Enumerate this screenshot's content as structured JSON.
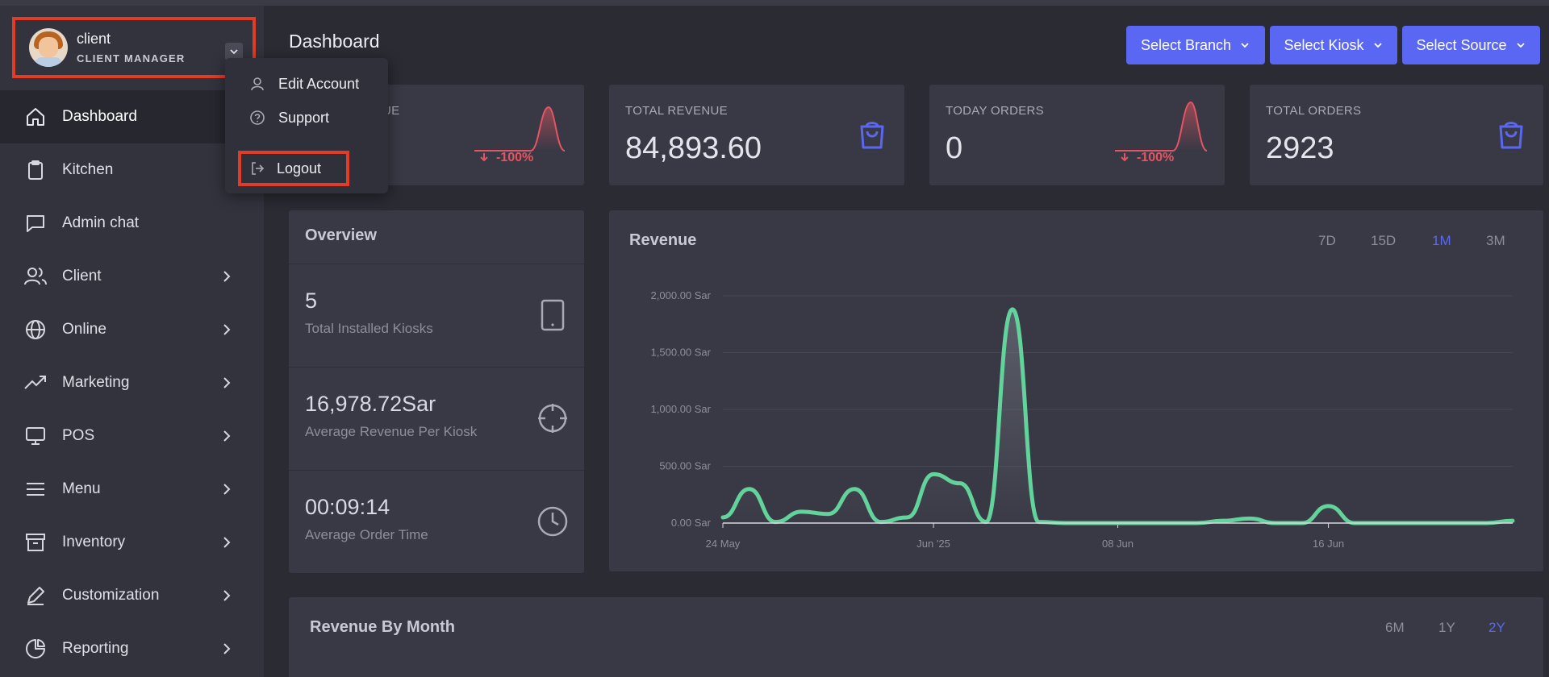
{
  "profile": {
    "name": "client",
    "role": "CLIENT MANAGER"
  },
  "dropdown": {
    "items": [
      {
        "label": "Edit Account",
        "icon": "user-icon"
      },
      {
        "label": "Support",
        "icon": "help-circle-icon"
      }
    ],
    "logout_label": "Logout"
  },
  "sidebar": {
    "items": [
      {
        "label": "Dashboard",
        "icon": "home-icon"
      },
      {
        "label": "Kitchen",
        "icon": "clipboard-icon"
      },
      {
        "label": "Admin chat",
        "icon": "chat-icon"
      },
      {
        "label": "Client",
        "icon": "users-icon"
      },
      {
        "label": "Online",
        "icon": "globe-icon"
      },
      {
        "label": "Marketing",
        "icon": "trending-up-icon"
      },
      {
        "label": "POS",
        "icon": "monitor-icon"
      },
      {
        "label": "Menu",
        "icon": "menu-icon"
      },
      {
        "label": "Inventory",
        "icon": "archive-icon"
      },
      {
        "label": "Customization",
        "icon": "pen-icon"
      },
      {
        "label": "Reporting",
        "icon": "pie-chart-icon"
      }
    ]
  },
  "header": {
    "title": "Dashboard",
    "select_branch": "Select Branch",
    "select_kiosk": "Select Kiosk",
    "select_source": "Select Source"
  },
  "stats": {
    "today_revenue": {
      "label": "UE",
      "pct": "-100%"
    },
    "total_revenue": {
      "label": "TOTAL REVENUE",
      "value": "84,893.60"
    },
    "today_orders": {
      "label": "TODAY ORDERS",
      "value": "0",
      "pct": "-100%"
    },
    "total_orders": {
      "label": "TOTAL ORDERS",
      "value": "2923"
    }
  },
  "overview": {
    "title": "Overview",
    "rows": [
      {
        "value": "5",
        "label": "Total Installed Kiosks",
        "icon": "tablet-icon"
      },
      {
        "value": "16,978.72Sar",
        "label": "Average Revenue Per Kiosk",
        "icon": "crosshair-icon"
      },
      {
        "value": "00:09:14",
        "label": "Average Order Time",
        "icon": "clock-icon"
      }
    ]
  },
  "revenue": {
    "title": "Revenue",
    "ranges": [
      "7D",
      "15D",
      "1M",
      "3M"
    ],
    "active_range": "1M"
  },
  "revenue_by_month": {
    "title": "Revenue By Month",
    "ranges": [
      "6M",
      "1Y",
      "2Y"
    ],
    "active_range": "2Y"
  },
  "colors": {
    "accent": "#5a67f2",
    "line": "#62d39a",
    "negative": "#e45563",
    "highlight": "#e03c28"
  },
  "chart_data": {
    "type": "area",
    "title": "Revenue",
    "x": [
      "2025-05-24",
      "2025-05-25",
      "2025-05-26",
      "2025-05-27",
      "2025-05-28",
      "2025-05-29",
      "2025-05-30",
      "2025-05-31",
      "2025-06-01",
      "2025-06-02",
      "2025-06-03",
      "2025-06-04",
      "2025-06-05",
      "2025-06-06",
      "2025-06-07",
      "2025-06-08",
      "2025-06-09",
      "2025-06-10",
      "2025-06-11",
      "2025-06-12",
      "2025-06-13",
      "2025-06-14",
      "2025-06-15",
      "2025-06-16",
      "2025-06-17",
      "2025-06-18",
      "2025-06-19",
      "2025-06-20",
      "2025-06-21",
      "2025-06-22",
      "2025-06-23"
    ],
    "values": [
      50,
      300,
      10,
      100,
      80,
      300,
      10,
      50,
      430,
      350,
      10,
      1880,
      10,
      0,
      0,
      0,
      0,
      0,
      0,
      20,
      40,
      0,
      0,
      150,
      0,
      0,
      0,
      0,
      0,
      0,
      20
    ],
    "x_tick_labels": [
      "24 May",
      "Jun '25",
      "08 Jun",
      "16 Jun"
    ],
    "y_tick_labels": [
      "0.00 Sar",
      "500.00 Sar",
      "1,000.00 Sar",
      "1,500.00 Sar",
      "2,000.00 Sar"
    ],
    "ylim": [
      0,
      2000
    ],
    "grid": true
  }
}
